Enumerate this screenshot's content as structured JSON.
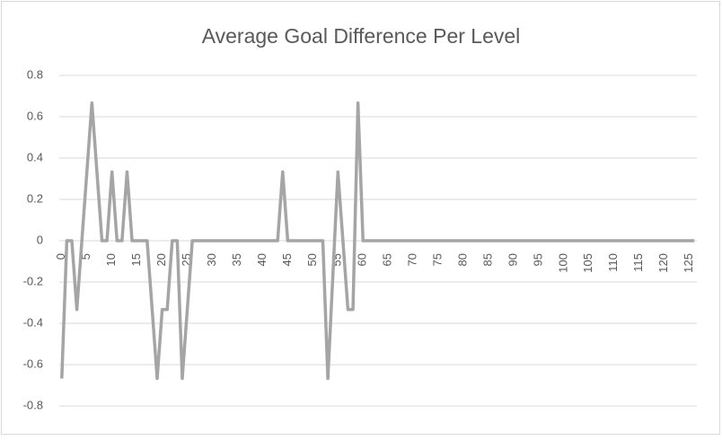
{
  "chart_data": {
    "type": "line",
    "title": "Average Goal Difference Per Level",
    "categories": [
      0,
      null,
      null,
      null,
      null,
      5,
      null,
      null,
      null,
      null,
      10,
      null,
      null,
      null,
      null,
      15,
      null,
      null,
      null,
      null,
      20,
      null,
      null,
      null,
      null,
      25,
      null,
      null,
      null,
      null,
      30,
      null,
      null,
      null,
      null,
      35,
      null,
      null,
      null,
      null,
      40,
      null,
      null,
      null,
      null,
      45,
      null,
      null,
      null,
      null,
      50,
      null,
      null,
      null,
      null,
      55,
      null,
      null,
      null,
      null,
      60,
      null,
      null,
      null,
      null,
      65,
      null,
      null,
      null,
      null,
      70,
      null,
      null,
      null,
      null,
      75,
      null,
      null,
      null,
      null,
      80,
      null,
      null,
      null,
      null,
      85,
      null,
      null,
      null,
      null,
      90,
      null,
      null,
      null,
      null,
      95,
      null,
      null,
      null,
      null,
      100,
      null,
      null,
      null,
      null,
      105,
      null,
      null,
      null,
      null,
      110,
      null,
      null,
      null,
      null,
      115,
      null,
      null,
      null,
      null,
      120,
      null,
      null,
      null,
      null,
      125,
      null
    ],
    "values": [
      -0.667,
      0,
      0,
      -0.333,
      0,
      0.333,
      0.667,
      0.333,
      0,
      0,
      0.333,
      0,
      0,
      0.333,
      0,
      0,
      0,
      0,
      -0.333,
      -0.667,
      -0.333,
      -0.333,
      0,
      0,
      -0.667,
      -0.333,
      0,
      0,
      0,
      0,
      0,
      0,
      0,
      0,
      0,
      0,
      0,
      0,
      0,
      0,
      0,
      0,
      0,
      0,
      0.333,
      0,
      0,
      0,
      0,
      0,
      0,
      0,
      0,
      -0.667,
      -0.167,
      0.333,
      0,
      -0.333,
      -0.333,
      0.667,
      0,
      0,
      0,
      0,
      0,
      0,
      0,
      0,
      0,
      0,
      0,
      0,
      0,
      0,
      0,
      0,
      0,
      0,
      0,
      0,
      0,
      0,
      0,
      0,
      0,
      0,
      0,
      0,
      0,
      0,
      0,
      0,
      0,
      0,
      0,
      0,
      0,
      0,
      0,
      0,
      0,
      0,
      0,
      0,
      0,
      0,
      0,
      0,
      0,
      0,
      0,
      0,
      0,
      0,
      0,
      0,
      0,
      0,
      0,
      0,
      0,
      0,
      0,
      0,
      0,
      0,
      0
    ],
    "color": "#a5a5a5",
    "ylim": [
      -0.8,
      0.8
    ],
    "yticks": [
      -0.8,
      -0.6,
      -0.4,
      -0.2,
      0,
      0.2,
      0.4,
      0.6,
      0.8
    ],
    "grid": true
  }
}
